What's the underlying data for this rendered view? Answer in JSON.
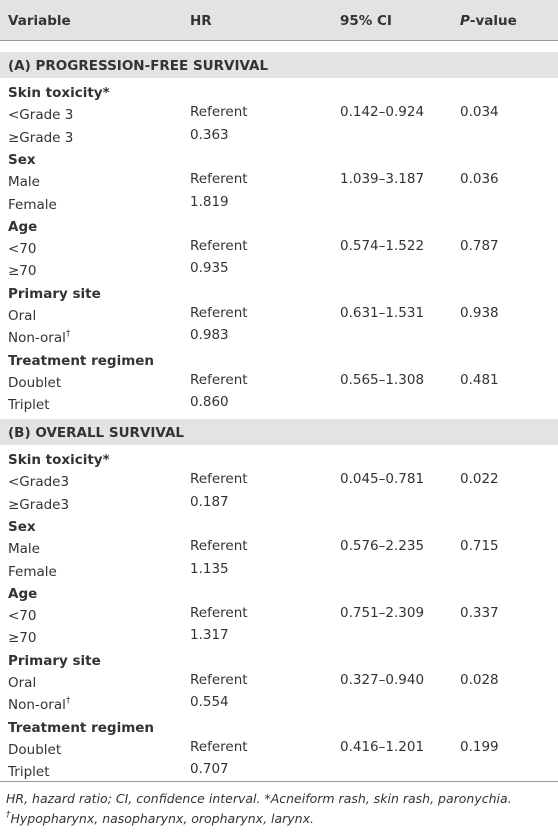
{
  "header": {
    "variable": "Variable",
    "hr": "HR",
    "ci": "95% CI",
    "p_italic": "P",
    "p_rest": "-value"
  },
  "sections": [
    {
      "title": "(A) PROGRESSION-FREE SURVIVAL",
      "groups": [
        {
          "name": "Skin toxicity*",
          "ci": "0.142–0.924",
          "p": "0.034",
          "rows": [
            {
              "label": "<Grade 3",
              "hr": "Referent"
            },
            {
              "label": "≥Grade 3",
              "hr": "0.363"
            }
          ]
        },
        {
          "name": "Sex",
          "ci": "1.039–3.187",
          "p": "0.036",
          "rows": [
            {
              "label": "Male",
              "hr": "Referent"
            },
            {
              "label": "Female",
              "hr": "1.819"
            }
          ]
        },
        {
          "name": "Age",
          "ci": "0.574–1.522",
          "p": "0.787",
          "rows": [
            {
              "label": "<70",
              "hr": "Referent"
            },
            {
              "label": "≥70",
              "hr": "0.935"
            }
          ]
        },
        {
          "name": "Primary site",
          "ci": "0.631–1.531",
          "p": "0.938",
          "rows": [
            {
              "label": "Oral",
              "hr": "Referent"
            },
            {
              "label": "Non-oral",
              "sup": "†",
              "hr": "0.983"
            }
          ]
        },
        {
          "name": "Treatment regimen",
          "ci": "0.565–1.308",
          "p": "0.481",
          "rows": [
            {
              "label": "Doublet",
              "hr": "Referent"
            },
            {
              "label": "Triplet",
              "hr": "0.860"
            }
          ]
        }
      ]
    },
    {
      "title": "(B) OVERALL SURVIVAL",
      "groups": [
        {
          "name": "Skin toxicity*",
          "ci": "0.045–0.781",
          "p": "0.022",
          "rows": [
            {
              "label": "<Grade3",
              "hr": "Referent"
            },
            {
              "label": "≥Grade3",
              "hr": "0.187"
            }
          ]
        },
        {
          "name": "Sex",
          "ci": "0.576–2.235",
          "p": "0.715",
          "rows": [
            {
              "label": "Male",
              "hr": "Referent"
            },
            {
              "label": "Female",
              "hr": "1.135"
            }
          ]
        },
        {
          "name": "Age",
          "ci": "0.751–2.309",
          "p": "0.337",
          "rows": [
            {
              "label": "<70",
              "hr": "Referent"
            },
            {
              "label": "≥70",
              "hr": "1.317"
            }
          ]
        },
        {
          "name": "Primary site",
          "ci": "0.327–0.940",
          "p": "0.028",
          "rows": [
            {
              "label": "Oral",
              "hr": "Referent"
            },
            {
              "label": "Non-oral",
              "sup": "†",
              "hr": "0.554"
            }
          ]
        },
        {
          "name": "Treatment regimen",
          "ci": "0.416–1.201",
          "p": "0.199",
          "rows": [
            {
              "label": "Doublet",
              "hr": "Referent"
            },
            {
              "label": "Triplet",
              "hr": "0.707"
            }
          ]
        }
      ]
    }
  ],
  "footnotes": [
    {
      "text": "HR, hazard ratio; CI, confidence interval. *Acneiform rash, skin rash, paronychia."
    },
    {
      "sup": "†",
      "text": "Hypopharynx, nasopharynx, oropharynx, larynx."
    }
  ]
}
